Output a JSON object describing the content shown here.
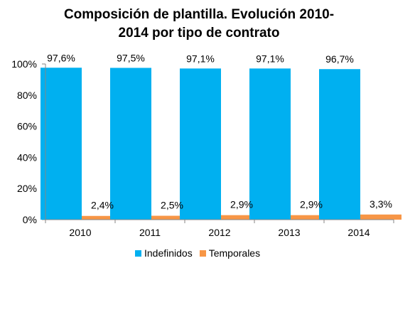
{
  "chart_data": {
    "type": "bar",
    "title": [
      "Composición de plantilla. Evolución 2010-",
      "2014 por tipo de contrato"
    ],
    "categories": [
      "2010",
      "2011",
      "2012",
      "2013",
      "2014"
    ],
    "series": [
      {
        "name": "Indefinidos",
        "color": "#00B0F0",
        "values": [
          97.6,
          97.5,
          97.1,
          97.1,
          96.7
        ],
        "labels": [
          "97,6%",
          "97,5%",
          "97,1%",
          "97,1%",
          "96,7%"
        ]
      },
      {
        "name": "Temporales",
        "color": "#F79646",
        "values": [
          2.4,
          2.5,
          2.9,
          2.9,
          3.3
        ],
        "labels": [
          "2,4%",
          "2,5%",
          "2,9%",
          "2,9%",
          "3,3%"
        ]
      }
    ],
    "ylim": [
      0,
      100
    ],
    "yticks": [
      "0%",
      "20%",
      "40%",
      "60%",
      "80%",
      "100%"
    ],
    "grid": false,
    "legend_position": "bottom"
  }
}
